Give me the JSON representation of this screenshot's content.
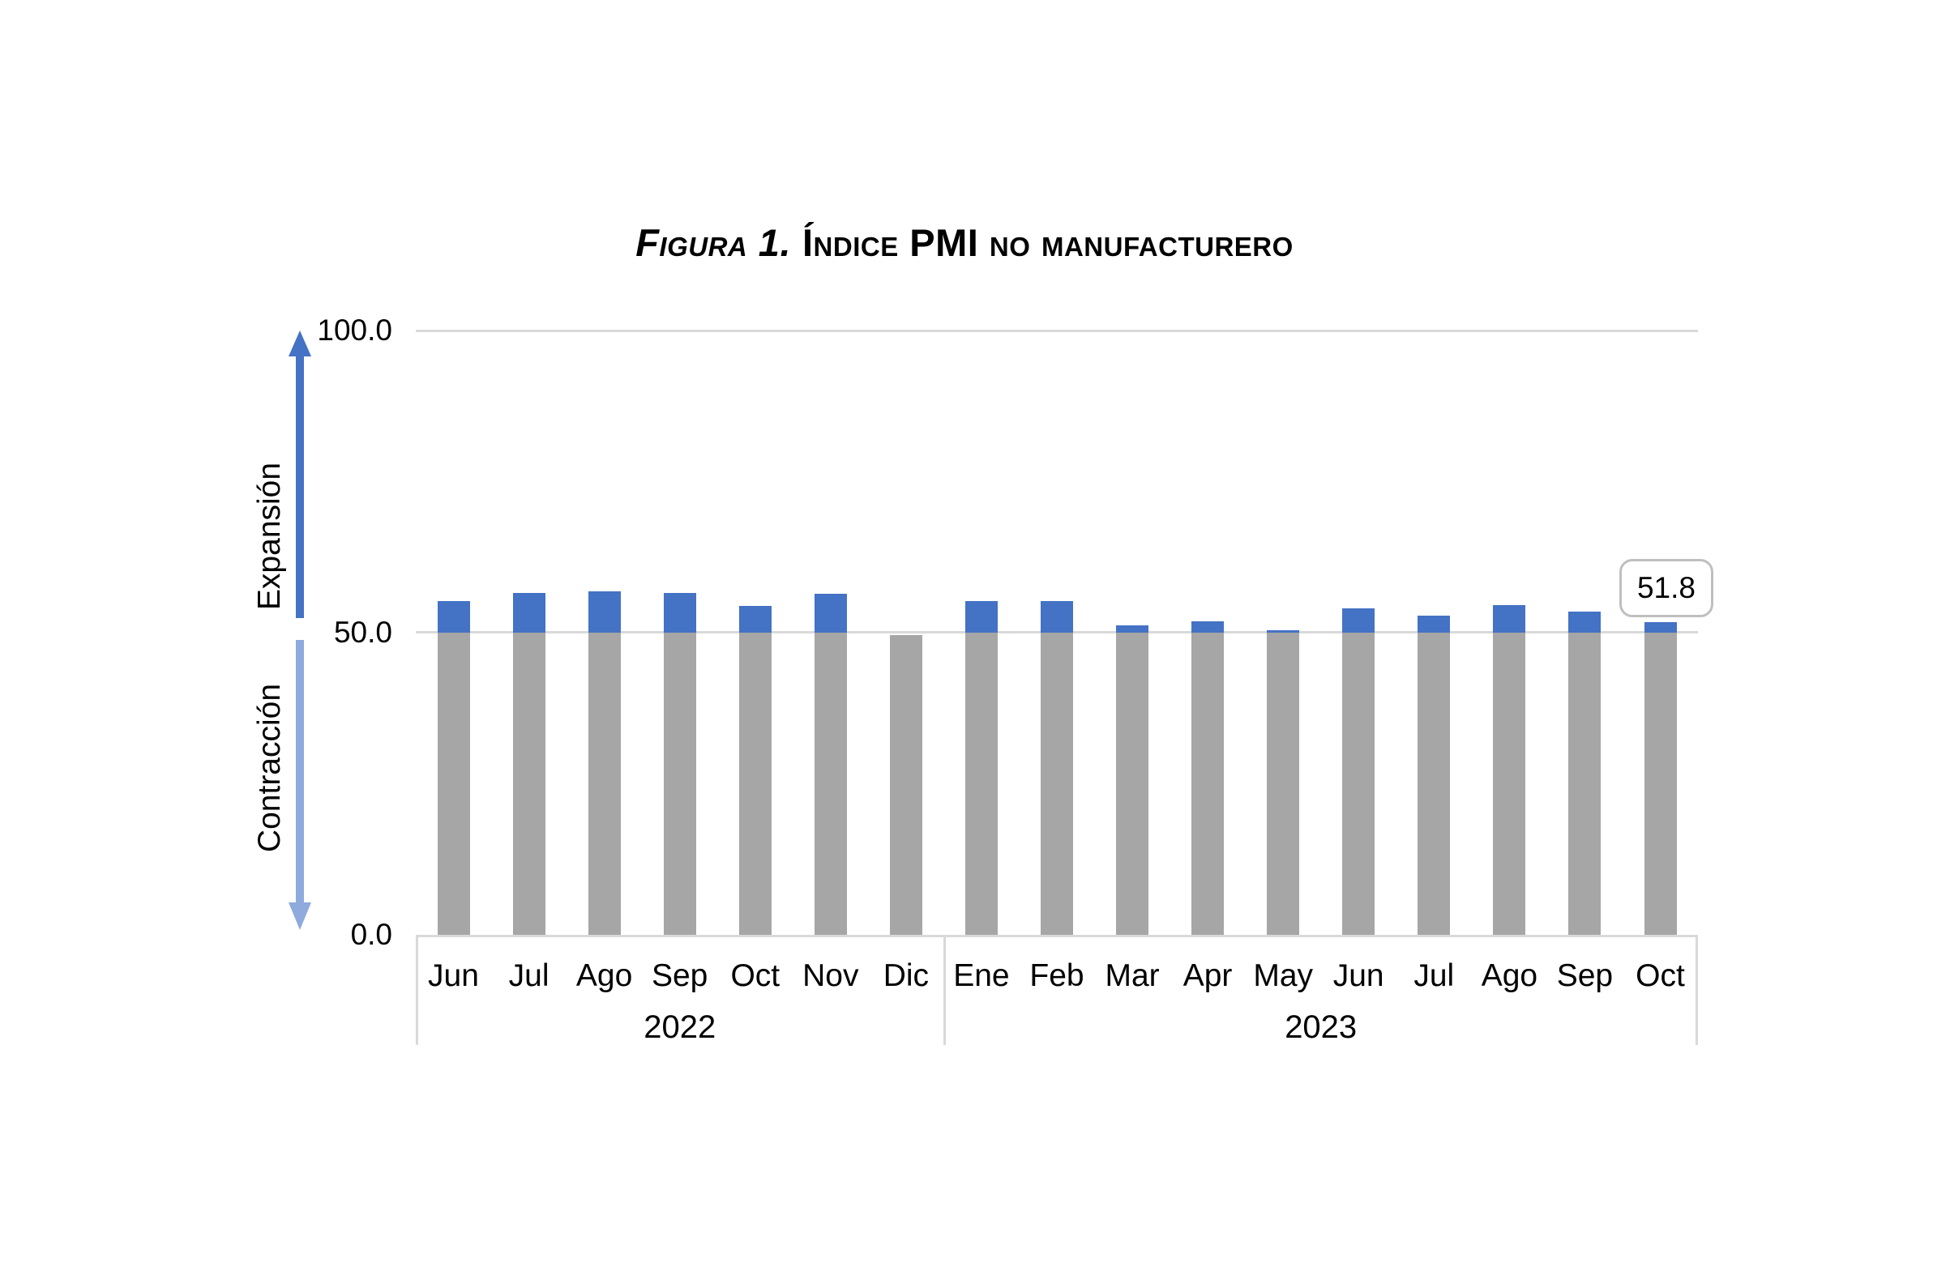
{
  "header": {
    "prefix": "Figura 1.",
    "main": "Índice PMI no manufacturero"
  },
  "chart_data": {
    "type": "bar",
    "title": "Figura 1. Índice PMI no manufacturero",
    "xlabel": "",
    "ylabel": "",
    "y_axis": {
      "ticks": [
        "100.0",
        "50.0",
        "0.0"
      ],
      "min": 0,
      "max": 100,
      "threshold": 50
    },
    "side_labels": {
      "expansion": "Expansión",
      "contraction": "Contracción"
    },
    "groups": [
      {
        "year": "2022",
        "months": [
          "Jun",
          "Jul",
          "Ago",
          "Sep",
          "Oct",
          "Nov",
          "Dic"
        ]
      },
      {
        "year": "2023",
        "months": [
          "Ene",
          "Feb",
          "Mar",
          "Apr",
          "May",
          "Jun",
          "Jul",
          "Ago",
          "Sep",
          "Oct"
        ]
      }
    ],
    "categories": [
      "Jun 2022",
      "Jul 2022",
      "Ago 2022",
      "Sep 2022",
      "Oct 2022",
      "Nov 2022",
      "Dic 2022",
      "Ene 2023",
      "Feb 2023",
      "Mar 2023",
      "Apr 2023",
      "May 2023",
      "Jun 2023",
      "Jul 2023",
      "Ago 2023",
      "Sep 2023",
      "Oct 2023"
    ],
    "values": [
      55.2,
      56.6,
      56.9,
      56.6,
      54.4,
      56.5,
      49.6,
      55.2,
      55.3,
      51.2,
      51.9,
      50.4,
      54.0,
      52.8,
      54.5,
      53.5,
      51.8
    ],
    "annotation": {
      "text": "51.8",
      "category": "Oct 2023"
    },
    "colors": {
      "above_threshold": "#4472C4",
      "below_threshold": "#A6A6A6",
      "gridline": "#D9D9D9",
      "up_arrow": "#4472C4",
      "down_arrow": "#8FAADC"
    },
    "layout": {
      "grid": "horizontal-only",
      "legend": "none"
    }
  }
}
